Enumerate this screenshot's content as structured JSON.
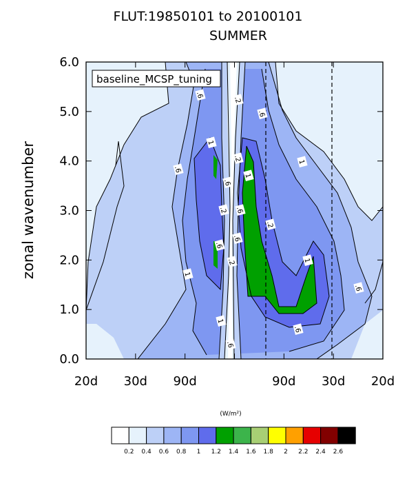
{
  "chart_data": {
    "type": "contour",
    "title": "FLUT:19850101 to 20100101",
    "subtitle": "SUMMER",
    "ylabel": "zonal wavenumber",
    "legend_label": "baseline_MCSP_tuning",
    "units": "(W/m²)",
    "ylim": [
      0,
      6
    ],
    "yticks": [
      "0.0",
      "1.0",
      "2.0",
      "3.0",
      "4.0",
      "5.0",
      "6.0"
    ],
    "xticks": [
      "20d",
      "30d",
      "90d",
      "",
      "90d",
      "30d",
      "20d"
    ],
    "colorbar": {
      "levels": [
        "0.2",
        "0.4",
        "0.6",
        "0.8",
        "1",
        "1.2",
        "1.4",
        "1.6",
        "1.8",
        "2",
        "2.2",
        "2.4",
        "2.6"
      ],
      "colors": [
        "#ffffff",
        "#e6f2fc",
        "#bdd0f7",
        "#9db5f5",
        "#7e97f1",
        "#5f6cec",
        "#00a000",
        "#3cb44b",
        "#a8cf74",
        "#ffff00",
        "#ffa000",
        "#e60000",
        "#820000",
        "#000000"
      ]
    },
    "contour_labels": [
      ".6",
      "1",
      ".2",
      ".6",
      ".6",
      "1",
      ".6",
      "1",
      ".2",
      ".6",
      ".6",
      ".2",
      ".6",
      "1",
      "1",
      ".6",
      "1",
      ".6",
      ".6",
      ".2",
      ".2"
    ]
  }
}
